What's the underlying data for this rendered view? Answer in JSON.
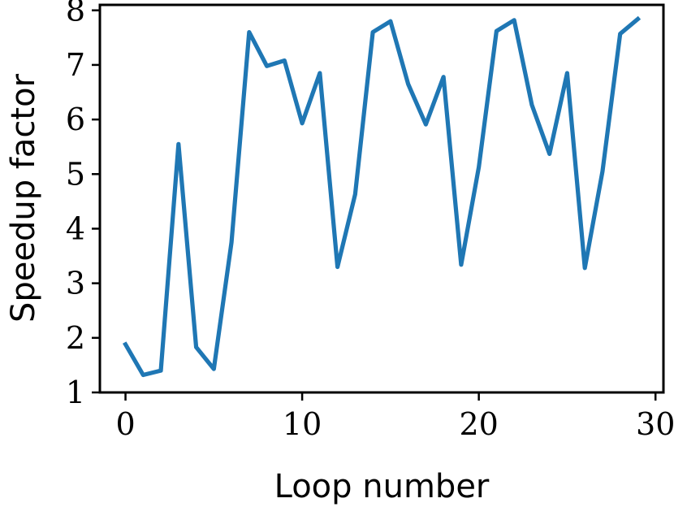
{
  "chart_data": {
    "type": "line",
    "title": "",
    "xlabel": "Loop number",
    "ylabel": "Speedup factor",
    "xlim": [
      -1.45,
      30.45
    ],
    "ylim": [
      1.0,
      8.1
    ],
    "xticks": [
      0,
      10,
      20,
      30
    ],
    "yticks": [
      1,
      2,
      3,
      4,
      5,
      6,
      7,
      8
    ],
    "grid": false,
    "legend": "none",
    "series": [
      {
        "color": "#1f77b4",
        "x": [
          0,
          1,
          2,
          3,
          4,
          5,
          6,
          7,
          8,
          9,
          10,
          11,
          12,
          13,
          14,
          15,
          16,
          17,
          18,
          19,
          20,
          21,
          22,
          23,
          24,
          25,
          26,
          27,
          28,
          29
        ],
        "y": [
          1.88,
          1.32,
          1.4,
          5.55,
          1.83,
          1.43,
          3.75,
          7.6,
          6.98,
          7.08,
          5.93,
          6.85,
          3.3,
          4.63,
          7.6,
          7.8,
          6.65,
          5.91,
          6.78,
          3.34,
          5.13,
          7.62,
          7.82,
          6.27,
          5.37,
          6.85,
          3.28,
          5.05,
          7.57,
          7.84
        ]
      }
    ]
  }
}
